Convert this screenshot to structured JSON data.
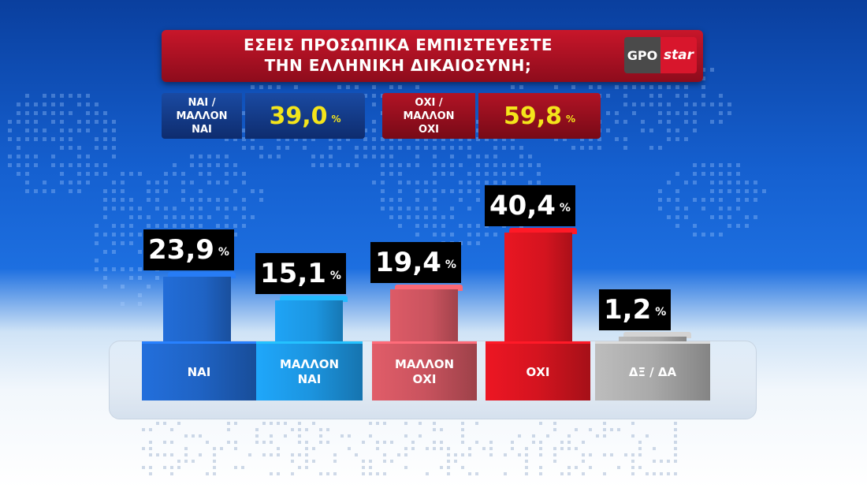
{
  "header": {
    "title": "ΕΣΕΙΣ ΠΡΟΣΩΠΙΚΑ ΕΜΠΙΣΤΕΥΕΣΤΕ\nΤΗΝ ΕΛΛΗΝΙΚΗ ΔΙΚΑΙΟΣΥΝΗ;",
    "logo_left": "GPO",
    "logo_right": "star"
  },
  "summary": {
    "yes_label": "ΝΑΙ /\nΜΑΛΛΟΝ\nΝΑΙ",
    "yes_value": "39,0",
    "no_label": "ΟΧΙ /\nΜΑΛΛΟΝ\nΟΧΙ",
    "no_value": "59,8",
    "percent_sign": "%"
  },
  "colors": {
    "yes_box": "#123a86",
    "no_box": "#8e0d1c",
    "value_text": "#f4e51b"
  },
  "chart_data": {
    "type": "bar",
    "categories": [
      "ΝΑΙ",
      "ΜΑΛΛΟΝ\nΝΑΙ",
      "ΜΑΛΛΟΝ\nΟΧΙ",
      "ΟΧΙ",
      "ΔΞ / ΔΑ"
    ],
    "values": [
      23.9,
      15.1,
      19.4,
      40.4,
      1.2
    ],
    "value_labels": [
      "23,9",
      "15,1",
      "19,4",
      "40,4",
      "1,2"
    ],
    "unit": "%",
    "colors": [
      "#1f63c4",
      "#1c95e0",
      "#c9535e",
      "#d4141f",
      "#a9a9a9"
    ],
    "ylim": [
      0,
      45
    ],
    "grid": false,
    "legend": "none"
  }
}
